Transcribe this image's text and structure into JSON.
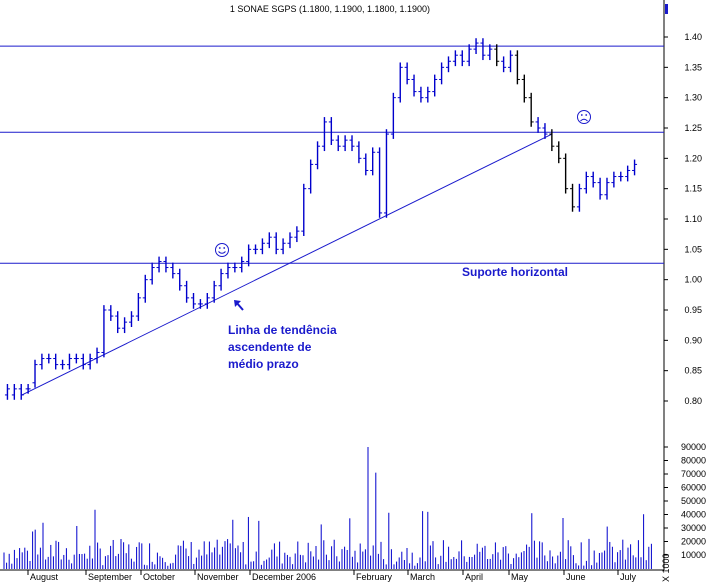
{
  "chart_data": [
    {
      "type": "bar",
      "subtype": "ohlc-price",
      "title": "1 SONAE SGPS (1.1800, 1.1900, 1.1800, 1.1900)",
      "colors": {
        "price_bars": "#0000cc",
        "downtrend_bars": "#000000",
        "lines": "#1a1acc",
        "annotations": "#1a1acc"
      },
      "ylim": [
        0.775,
        1.445
      ],
      "y_ticks": [
        "1.40",
        "1.35",
        "1.30",
        "1.25",
        "1.20",
        "1.15",
        "1.10",
        "1.05",
        "1.00",
        "0.95",
        "0.90",
        "0.85",
        "0.80"
      ],
      "x_months": [
        "August",
        "September",
        "October",
        "November",
        "December 2006",
        "February",
        "March",
        "April",
        "May",
        "June",
        "July"
      ],
      "horizontal_lines": [
        1.385,
        1.243,
        1.027
      ],
      "trendline": {
        "from": [
          "early August",
          0.81
        ],
        "to": [
          "late May",
          1.24
        ]
      },
      "price_path": [
        [
          0.81,
          0.82
        ],
        [
          0.81,
          0.82
        ],
        [
          0.82,
          0.81
        ],
        [
          0.82,
          0.82
        ],
        [
          0.83,
          0.86
        ],
        [
          0.86,
          0.87
        ],
        [
          0.87,
          0.87
        ],
        [
          0.87,
          0.86
        ],
        [
          0.86,
          0.86
        ],
        [
          0.86,
          0.87
        ],
        [
          0.87,
          0.87
        ],
        [
          0.87,
          0.86
        ],
        [
          0.86,
          0.87
        ],
        [
          0.87,
          0.88
        ],
        [
          0.88,
          0.95
        ],
        [
          0.95,
          0.94
        ],
        [
          0.94,
          0.92
        ],
        [
          0.92,
          0.93
        ],
        [
          0.93,
          0.94
        ],
        [
          0.94,
          0.97
        ],
        [
          0.97,
          1.0
        ],
        [
          1.0,
          1.02
        ],
        [
          1.02,
          1.03
        ],
        [
          1.03,
          1.02
        ],
        [
          1.02,
          1.01
        ],
        [
          1.01,
          0.99
        ],
        [
          0.99,
          0.97
        ],
        [
          0.97,
          0.96
        ],
        [
          0.96,
          0.96
        ],
        [
          0.96,
          0.97
        ],
        [
          0.97,
          0.99
        ],
        [
          0.99,
          1.01
        ],
        [
          1.01,
          1.02
        ],
        [
          1.02,
          1.02
        ],
        [
          1.02,
          1.03
        ],
        [
          1.03,
          1.05
        ],
        [
          1.05,
          1.05
        ],
        [
          1.05,
          1.06
        ],
        [
          1.06,
          1.07
        ],
        [
          1.07,
          1.05
        ],
        [
          1.05,
          1.06
        ],
        [
          1.06,
          1.07
        ],
        [
          1.07,
          1.08
        ],
        [
          1.08,
          1.15
        ],
        [
          1.15,
          1.19
        ],
        [
          1.19,
          1.22
        ],
        [
          1.22,
          1.26
        ],
        [
          1.26,
          1.23
        ],
        [
          1.23,
          1.22
        ],
        [
          1.22,
          1.23
        ],
        [
          1.23,
          1.22
        ],
        [
          1.22,
          1.2
        ],
        [
          1.2,
          1.18
        ],
        [
          1.18,
          1.21
        ],
        [
          1.21,
          1.11
        ],
        [
          1.11,
          1.24
        ],
        [
          1.24,
          1.3
        ],
        [
          1.3,
          1.35
        ],
        [
          1.35,
          1.33
        ],
        [
          1.33,
          1.31
        ],
        [
          1.31,
          1.3
        ],
        [
          1.3,
          1.31
        ],
        [
          1.31,
          1.33
        ],
        [
          1.33,
          1.35
        ],
        [
          1.35,
          1.36
        ],
        [
          1.36,
          1.37
        ],
        [
          1.37,
          1.36
        ],
        [
          1.36,
          1.38
        ],
        [
          1.38,
          1.39
        ],
        [
          1.39,
          1.37
        ],
        [
          1.37,
          1.38
        ],
        [
          1.38,
          1.36
        ],
        [
          1.36,
          1.35
        ],
        [
          1.35,
          1.37
        ],
        [
          1.37,
          1.33
        ],
        [
          1.33,
          1.3
        ],
        [
          1.3,
          1.26
        ],
        [
          1.26,
          1.25
        ],
        [
          1.25,
          1.24
        ],
        [
          1.24,
          1.22
        ],
        [
          1.22,
          1.2
        ],
        [
          1.2,
          1.15
        ],
        [
          1.15,
          1.12
        ],
        [
          1.12,
          1.15
        ],
        [
          1.15,
          1.17
        ],
        [
          1.17,
          1.16
        ],
        [
          1.16,
          1.14
        ],
        [
          1.14,
          1.16
        ],
        [
          1.16,
          1.17
        ],
        [
          1.17,
          1.17
        ],
        [
          1.17,
          1.18
        ],
        [
          1.18,
          1.19
        ]
      ],
      "annotations": [
        {
          "text": "Suporte horizontal"
        },
        {
          "lines": [
            "Linha de tendência",
            "ascendente de",
            "médio prazo"
          ]
        }
      ],
      "markers": [
        {
          "icon": "smiley-face-icon"
        },
        {
          "icon": "frowny-face-icon"
        }
      ]
    },
    {
      "type": "bar",
      "subtype": "volume",
      "y_ticks": [
        "90000",
        "80000",
        "70000",
        "60000",
        "50000",
        "40000",
        "30000",
        "20000",
        "10000"
      ],
      "ylim": [
        0,
        95000
      ],
      "unit_label": "X 1000",
      "peaks": [
        {
          "month": "February",
          "value": 90000
        },
        {
          "month": "February",
          "value": 71000
        }
      ],
      "typical_range": [
        2000,
        22000
      ]
    }
  ]
}
